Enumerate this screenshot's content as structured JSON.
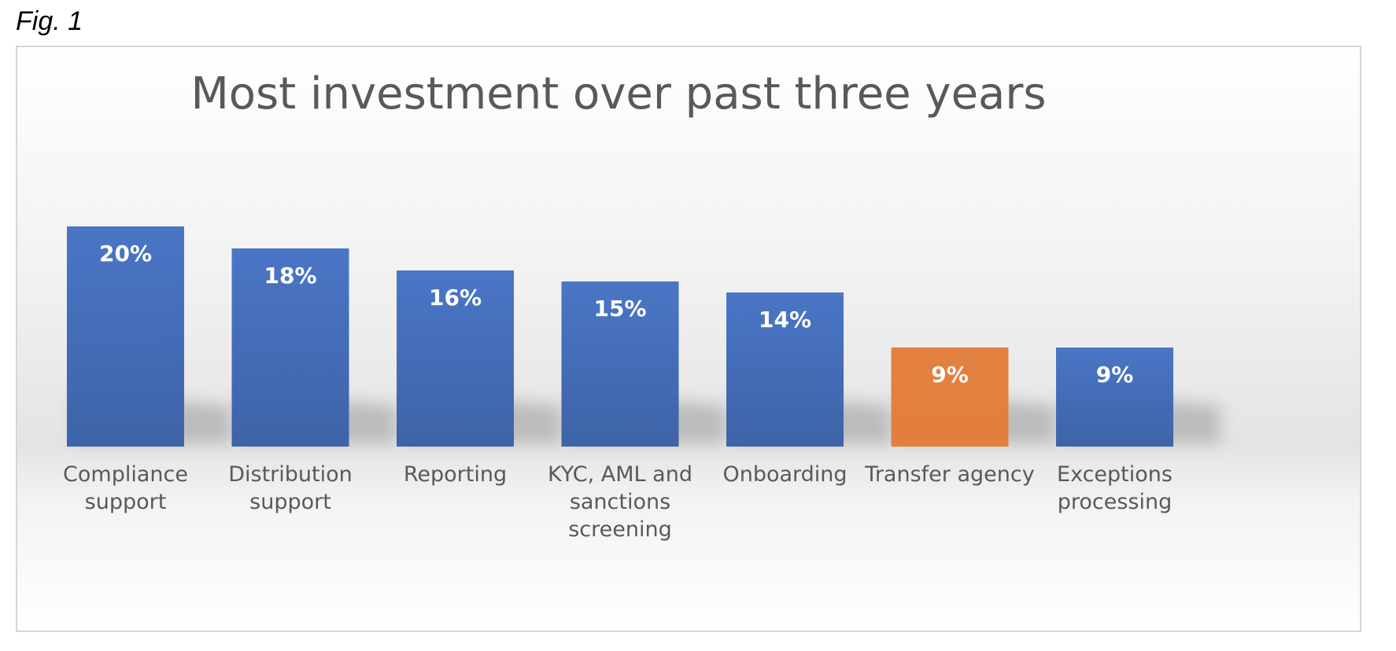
{
  "figure_label": "Fig. 1",
  "colors": {
    "bar": "#4472c4",
    "bar_highlight": "#ed7d31",
    "value_label": "#ffffff",
    "category_label": "#595959",
    "title": "#595959"
  },
  "chart_data": {
    "type": "bar",
    "title": "Most investment over past three years",
    "categories": [
      [
        "Compliance",
        "support"
      ],
      [
        "Distribution",
        "support"
      ],
      [
        "Reporting"
      ],
      [
        "KYC, AML and",
        "sanctions",
        "screening"
      ],
      [
        "Onboarding"
      ],
      [
        "Transfer agency"
      ],
      [
        "Exceptions",
        "processing"
      ]
    ],
    "values": [
      20,
      18,
      16,
      15,
      14,
      9,
      9
    ],
    "value_labels": [
      "20%",
      "18%",
      "16%",
      "15%",
      "14%",
      "9%",
      "9%"
    ],
    "highlight_index": 5,
    "ylim": [
      0,
      33
    ],
    "grid": false,
    "legend": "none"
  }
}
